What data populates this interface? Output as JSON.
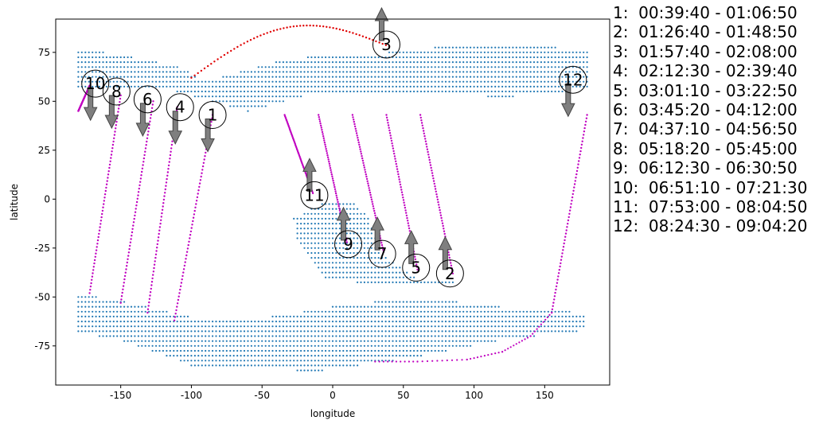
{
  "chart_data": {
    "type": "scatter",
    "title": "",
    "xlabel": "longitude",
    "ylabel": "latitude",
    "xlim": [
      -196,
      196
    ],
    "ylim": [
      -95,
      92
    ],
    "x_ticks": [
      -150,
      -100,
      -50,
      0,
      50,
      100,
      150
    ],
    "y_ticks": [
      -75,
      -50,
      -25,
      0,
      25,
      50,
      75
    ],
    "grid": false,
    "colors": {
      "land": "#1f77b4",
      "track": "#c000c0",
      "track_alt": "#e00000",
      "arrow": "#7f7f7f"
    },
    "land_regions": [
      {
        "name": "north-band",
        "lon": [
          -180,
          180
        ],
        "lat_bottom": [
          [
            -180,
            57
          ],
          [
            -110,
            55
          ],
          [
            -60,
            45
          ],
          [
            -10,
            55
          ],
          [
            60,
            55
          ],
          [
            120,
            52
          ],
          [
            180,
            56
          ]
        ],
        "lat_top": [
          [
            -180,
            77
          ],
          [
            -145,
            73
          ],
          [
            -110,
            68
          ],
          [
            -90,
            60
          ],
          [
            -30,
            72
          ],
          [
            40,
            75
          ],
          [
            90,
            79
          ],
          [
            180,
            77
          ]
        ]
      },
      {
        "name": "south-africa-like-land",
        "lon": [
          -30,
          115
        ],
        "shape": [
          [
            -28,
            -10
          ],
          [
            -15,
            -5
          ],
          [
            0,
            0
          ],
          [
            15,
            -2
          ],
          [
            25,
            -8
          ],
          [
            35,
            -28
          ],
          [
            60,
            -40
          ],
          [
            115,
            -41
          ],
          [
            40,
            -45
          ],
          [
            -5,
            -40
          ],
          [
            -25,
            -20
          ]
        ]
      },
      {
        "name": "south-band",
        "lon": [
          -180,
          180
        ],
        "shape": [
          [
            -180,
            -48
          ],
          [
            -150,
            -52
          ],
          [
            -100,
            -60
          ],
          [
            -60,
            -62
          ],
          [
            0,
            -55
          ],
          [
            60,
            -50
          ],
          [
            120,
            -55
          ],
          [
            180,
            -58
          ],
          [
            180,
            -67
          ],
          [
            120,
            -72
          ],
          [
            50,
            -82
          ],
          [
            -10,
            -88
          ],
          [
            -100,
            -85
          ],
          [
            -150,
            -72
          ],
          [
            -180,
            -68
          ]
        ]
      }
    ],
    "tracks": [
      {
        "id": 1,
        "label": "1",
        "time": "00:39:40 - 01:06:50",
        "dir": "down",
        "start": [
          -85,
          43
        ],
        "end": [
          -112,
          -62
        ],
        "color": "track"
      },
      {
        "id": 2,
        "label": "2",
        "time": "01:26:40 - 01:48:50",
        "dir": "up",
        "start": [
          62,
          43
        ],
        "end": [
          85,
          -38
        ],
        "color": "track"
      },
      {
        "id": 3,
        "label": "3",
        "time": "01:57:40 - 02:08:00",
        "dir": "up",
        "start": [
          -100,
          62
        ],
        "end": [
          40,
          78
        ],
        "color": "track_alt",
        "arc": true
      },
      {
        "id": 4,
        "label": "4",
        "time": "02:12:30 - 02:39:40",
        "dir": "down",
        "start": [
          -110,
          47
        ],
        "end": [
          -131,
          -58
        ],
        "color": "track"
      },
      {
        "id": 5,
        "label": "5",
        "time": "03:01:10 - 03:22:50",
        "dir": "up",
        "start": [
          38,
          43
        ],
        "end": [
          60,
          -36
        ],
        "color": "track"
      },
      {
        "id": 6,
        "label": "6",
        "time": "03:45:20 - 04:12:00",
        "dir": "down",
        "start": [
          -127,
          50
        ],
        "end": [
          -150,
          -53
        ],
        "color": "track"
      },
      {
        "id": 7,
        "label": "7",
        "time": "04:37:10 - 04:56:50",
        "dir": "up",
        "start": [
          14,
          43
        ],
        "end": [
          36,
          -27
        ],
        "color": "track"
      },
      {
        "id": 8,
        "label": "8",
        "time": "05:18:20 - 05:45:00",
        "dir": "down",
        "start": [
          -150,
          53
        ],
        "end": [
          -172,
          -48
        ],
        "color": "track"
      },
      {
        "id": 9,
        "label": "9",
        "time": "06:12:30 - 06:30:50",
        "dir": "up",
        "start": [
          -10,
          43
        ],
        "end": [
          10,
          -22
        ],
        "color": "track"
      },
      {
        "id": 10,
        "label": "10",
        "time": "06:51:10 - 07:21:30",
        "dir": "down",
        "start": [
          -172,
          58
        ],
        "end": [
          -180,
          45
        ],
        "color": "track"
      },
      {
        "id": 11,
        "label": "11",
        "time": "07:53:00 - 08:04:50",
        "dir": "up",
        "start": [
          -34,
          43
        ],
        "end": [
          -14,
          3
        ],
        "color": "track"
      },
      {
        "id": 12,
        "label": "12",
        "time": "08:24:30 - 09:04:20",
        "dir": "down",
        "start": [
          180,
          43
        ],
        "end": [
          155,
          -58
        ],
        "color": "track"
      }
    ],
    "markers": [
      {
        "label": "10",
        "x": -168,
        "y": 59,
        "arrow": "down"
      },
      {
        "label": "8",
        "x": -153,
        "y": 55,
        "arrow": "down"
      },
      {
        "label": "6",
        "x": -131,
        "y": 51,
        "arrow": "down"
      },
      {
        "label": "4",
        "x": -108,
        "y": 47,
        "arrow": "down"
      },
      {
        "label": "1",
        "x": -85,
        "y": 43,
        "arrow": "down"
      },
      {
        "label": "3",
        "x": 38,
        "y": 79,
        "arrow": "up"
      },
      {
        "label": "12",
        "x": 170,
        "y": 61,
        "arrow": "down"
      },
      {
        "label": "11",
        "x": -13,
        "y": 2,
        "arrow": "up"
      },
      {
        "label": "9",
        "x": 11,
        "y": -23,
        "arrow": "up"
      },
      {
        "label": "7",
        "x": 35,
        "y": -28,
        "arrow": "up"
      },
      {
        "label": "5",
        "x": 59,
        "y": -35,
        "arrow": "up"
      },
      {
        "label": "2",
        "x": 83,
        "y": -38,
        "arrow": "up"
      }
    ],
    "legend": [
      "1:  00:39:40 - 01:06:50",
      "2:  01:26:40 - 01:48:50",
      "3:  01:57:40 - 02:08:00",
      "4:  02:12:30 - 02:39:40",
      "5:  03:01:10 - 03:22:50",
      "6:  03:45:20 - 04:12:00",
      "7:  04:37:10 - 04:56:50",
      "8:  05:18:20 - 05:45:00",
      "9:  06:12:30 - 06:30:50",
      "10:  06:51:10 - 07:21:30",
      "11:  07:53:00 - 08:04:50",
      "12:  08:24:30 - 09:04:20"
    ]
  }
}
